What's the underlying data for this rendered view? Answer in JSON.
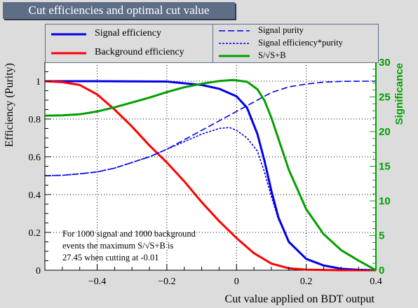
{
  "title": "Cut efficiencies and optimal cut value",
  "chart_data": {
    "type": "line",
    "xlabel": "Cut value applied on BDT output",
    "ylabel": "Efficiency (Purity)",
    "y2label": "Significance",
    "xlim": [
      -0.55,
      0.4
    ],
    "ylim": [
      0,
      1.1
    ],
    "y2lim": [
      0,
      30
    ],
    "xticks": [
      "−0.4",
      "−0.2",
      "0",
      "0.2",
      "0.4"
    ],
    "xtick_values": [
      -0.4,
      -0.2,
      0,
      0.2,
      0.4
    ],
    "yticks": [
      "0",
      "0.2",
      "0.4",
      "0.6",
      "0.8",
      "1"
    ],
    "ytick_values": [
      0,
      0.2,
      0.4,
      0.6,
      0.8,
      1.0
    ],
    "y2ticks": [
      "0",
      "5",
      "10",
      "15",
      "20",
      "25",
      "30"
    ],
    "y2tick_values": [
      0,
      5,
      10,
      15,
      20,
      25,
      30
    ],
    "grid": true,
    "legend_position": "top",
    "colors": {
      "signal": "#0000e6",
      "background": "#ff0000",
      "significance": "#00a000",
      "right_axis": "#00a000",
      "title_bg": "#5f6e87"
    },
    "series": [
      {
        "name": "Signal efficiency",
        "axis": "left",
        "style": "solid",
        "color": "#0000e6",
        "x": [
          -0.55,
          -0.4,
          -0.2,
          -0.1,
          -0.05,
          0.0,
          0.03,
          0.06,
          0.08,
          0.1,
          0.12,
          0.15,
          0.2,
          0.25,
          0.3,
          0.35,
          0.4
        ],
        "values": [
          1.0,
          1.0,
          0.998,
          0.98,
          0.96,
          0.92,
          0.86,
          0.72,
          0.58,
          0.42,
          0.28,
          0.15,
          0.06,
          0.025,
          0.008,
          0.002,
          0.0
        ]
      },
      {
        "name": "Background efficiency",
        "axis": "left",
        "style": "solid",
        "color": "#ff0000",
        "x": [
          -0.55,
          -0.5,
          -0.45,
          -0.4,
          -0.35,
          -0.3,
          -0.25,
          -0.2,
          -0.15,
          -0.1,
          -0.05,
          0.0,
          0.05,
          0.1,
          0.15,
          0.2,
          0.3,
          0.4
        ],
        "values": [
          1.0,
          0.995,
          0.98,
          0.93,
          0.85,
          0.76,
          0.66,
          0.57,
          0.47,
          0.36,
          0.26,
          0.17,
          0.09,
          0.035,
          0.01,
          0.003,
          0.0,
          0.0
        ]
      },
      {
        "name": "Signal purity",
        "axis": "left",
        "style": "dashed",
        "color": "#0000e6",
        "x": [
          -0.55,
          -0.5,
          -0.45,
          -0.4,
          -0.35,
          -0.3,
          -0.25,
          -0.2,
          -0.15,
          -0.1,
          -0.05,
          0.0,
          0.05,
          0.1,
          0.15,
          0.2,
          0.25,
          0.3,
          0.35,
          0.4
        ],
        "values": [
          0.5,
          0.502,
          0.51,
          0.52,
          0.54,
          0.57,
          0.6,
          0.64,
          0.69,
          0.74,
          0.79,
          0.84,
          0.89,
          0.94,
          0.97,
          0.985,
          0.995,
          0.999,
          1.0,
          1.0
        ]
      },
      {
        "name": "Signal efficiency*purity",
        "axis": "left",
        "style": "dotted",
        "color": "#0000e6",
        "x": [
          -0.55,
          -0.5,
          -0.45,
          -0.4,
          -0.35,
          -0.3,
          -0.25,
          -0.2,
          -0.15,
          -0.1,
          -0.05,
          -0.02,
          0.0,
          0.03,
          0.06,
          0.08,
          0.1,
          0.12,
          0.15,
          0.2,
          0.25,
          0.3,
          0.4
        ],
        "values": [
          0.5,
          0.502,
          0.51,
          0.52,
          0.54,
          0.57,
          0.6,
          0.64,
          0.68,
          0.72,
          0.75,
          0.755,
          0.74,
          0.7,
          0.63,
          0.52,
          0.39,
          0.27,
          0.15,
          0.06,
          0.025,
          0.008,
          0.0
        ]
      },
      {
        "name": "S/√S+B",
        "axis": "right",
        "style": "solid",
        "color": "#00a000",
        "x": [
          -0.55,
          -0.5,
          -0.45,
          -0.4,
          -0.35,
          -0.3,
          -0.25,
          -0.2,
          -0.15,
          -0.1,
          -0.05,
          -0.01,
          0.03,
          0.06,
          0.08,
          0.1,
          0.12,
          0.15,
          0.2,
          0.25,
          0.3,
          0.35,
          0.4
        ],
        "values": [
          22.3,
          22.35,
          22.5,
          22.9,
          23.5,
          24.2,
          24.9,
          25.7,
          26.4,
          26.9,
          27.3,
          27.45,
          27.2,
          26.1,
          24.5,
          22.0,
          19.0,
          14.5,
          8.8,
          5.2,
          2.9,
          1.4,
          0.0
        ]
      }
    ]
  },
  "note": {
    "line1": "For 1000 signal and 1000 background",
    "line2": "events the maximum S/√S+B is",
    "line3": "27.45 when cutting at -0.01"
  }
}
